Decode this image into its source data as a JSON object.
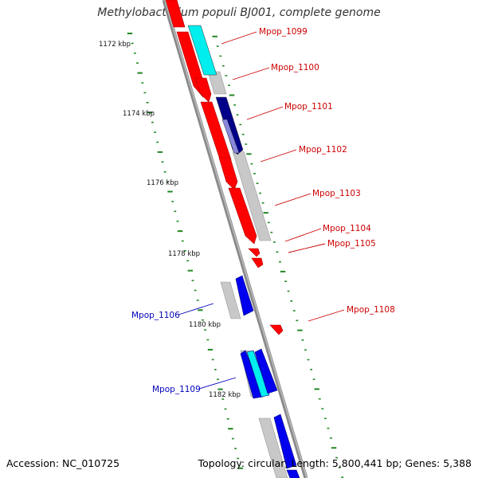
{
  "title": "Methylobacterium populi BJ001, complete genome",
  "footer": {
    "accession": "Accession: NC_010725",
    "summary": "Topology: circular; Length: 5,800,441 bp; Genes: 5,388"
  },
  "colors": {
    "backbone": "#888888",
    "ruler_tick": "#228822",
    "gene_red": "#ff0000",
    "gene_blue": "#0000ee",
    "gene_navy": "#000088",
    "gene_cyan": "#00eeee",
    "feature_gray": "#c8c8c8",
    "label_red": "#cc0000",
    "label_blue": "#0000bb"
  },
  "ruler": {
    "labels": [
      "1172 kbp",
      "1174 kbp",
      "1176 kbp",
      "1178 kbp",
      "1180 kbp",
      "1182 kbp"
    ]
  },
  "genes": [
    {
      "id": "Mpop_1099",
      "strand": "right"
    },
    {
      "id": "Mpop_1100",
      "strand": "right"
    },
    {
      "id": "Mpop_1101",
      "strand": "right"
    },
    {
      "id": "Mpop_1102",
      "strand": "right"
    },
    {
      "id": "Mpop_1103",
      "strand": "right"
    },
    {
      "id": "Mpop_1104",
      "strand": "right"
    },
    {
      "id": "Mpop_1105",
      "strand": "right"
    },
    {
      "id": "Mpop_1106",
      "strand": "left"
    },
    {
      "id": "Mpop_1108",
      "strand": "right"
    },
    {
      "id": "Mpop_1109",
      "strand": "left"
    }
  ]
}
